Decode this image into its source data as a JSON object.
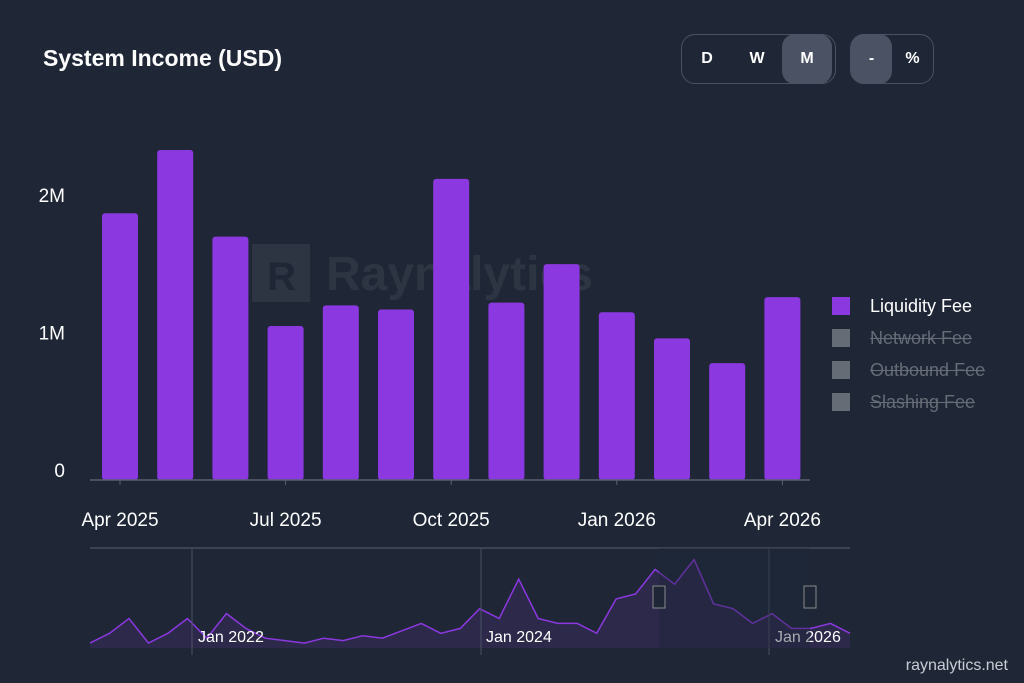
{
  "title": "System Income (USD)",
  "period_buttons": [
    {
      "label": "D",
      "active": false
    },
    {
      "label": "W",
      "active": false
    },
    {
      "label": "M",
      "active": true
    }
  ],
  "mode_buttons": [
    {
      "label": "-",
      "active": true
    },
    {
      "label": "%",
      "active": false
    }
  ],
  "watermark": "Raynalytics",
  "footer": "raynalytics.net",
  "chart_data": {
    "type": "bar",
    "title": "System Income (USD)",
    "categories": [
      "Apr 2025",
      "May 2025",
      "Jun 2025",
      "Jul 2025",
      "Aug 2025",
      "Sep 2025",
      "Oct 2025",
      "Nov 2025",
      "Dec 2025",
      "Jan 2026",
      "Feb 2026",
      "Mar 2026",
      "Apr 2026"
    ],
    "x_tick_labels": [
      "Apr 2025",
      "Jul 2025",
      "Oct 2025",
      "Jan 2026",
      "Apr 2026"
    ],
    "y_tick_labels": [
      "0",
      "1M",
      "2M"
    ],
    "ylim": [
      0,
      2500000
    ],
    "series": [
      {
        "name": "Liquidity Fee",
        "color": "#8c38e0",
        "visible": true,
        "values": [
          1940000,
          2400000,
          1770000,
          1120000,
          1270000,
          1240000,
          2190000,
          1290000,
          1570000,
          1220000,
          1030000,
          850000,
          1330000
        ]
      },
      {
        "name": "Network Fee",
        "color": "#666c76",
        "visible": false
      },
      {
        "name": "Outbound Fee",
        "color": "#666c76",
        "visible": false
      },
      {
        "name": "Slashing Fee",
        "color": "#666c76",
        "visible": false
      }
    ],
    "legend": "right",
    "navigator": {
      "tick_labels": [
        "Jan 2022",
        "Jan 2024",
        "Jan 2026"
      ],
      "values": [
        0.1,
        0.3,
        0.6,
        0.1,
        0.3,
        0.6,
        0.2,
        0.7,
        0.4,
        0.2,
        0.15,
        0.1,
        0.2,
        0.15,
        0.25,
        0.2,
        0.35,
        0.5,
        0.3,
        0.4,
        0.8,
        0.6,
        1.4,
        0.6,
        0.5,
        0.5,
        0.3,
        1.0,
        1.1,
        1.6,
        1.3,
        1.8,
        0.9,
        0.8,
        0.5,
        0.7,
        0.4,
        0.4,
        0.5,
        0.3
      ],
      "selection": [
        0.75,
        0.95
      ]
    }
  }
}
